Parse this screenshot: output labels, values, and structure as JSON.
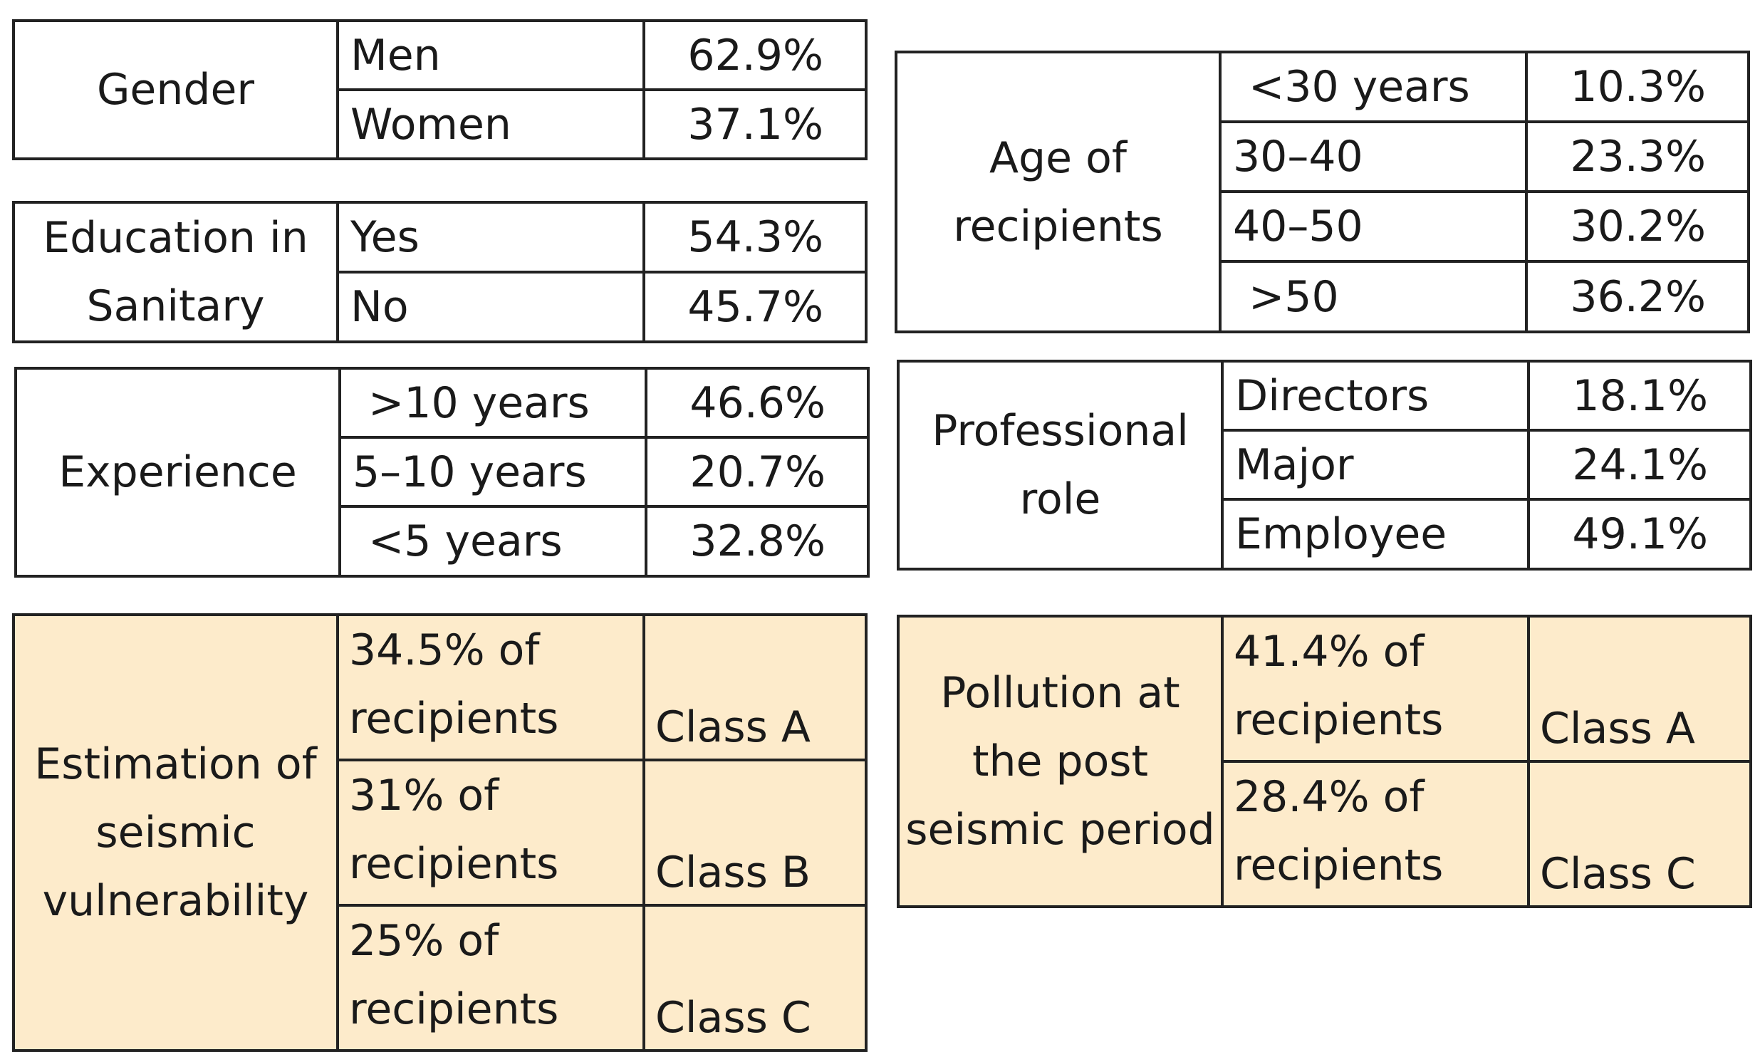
{
  "blocks": {
    "gender": {
      "category": "Gender",
      "rows": [
        {
          "label": "Men",
          "value": "62.9%"
        },
        {
          "label": "Women",
          "value": "37.1%"
        }
      ]
    },
    "education": {
      "category": "Education in Sanitary",
      "rows": [
        {
          "label": "Yes",
          "value": "54.3%"
        },
        {
          "label": "No",
          "value": "45.7%"
        }
      ]
    },
    "experience": {
      "category": "Experience",
      "rows": [
        {
          "label": ">10 years",
          "value": "46.6%"
        },
        {
          "label": "5–10 years",
          "value": "20.7%"
        },
        {
          "label": "<5 years",
          "value": "32.8%"
        }
      ]
    },
    "age": {
      "category": "Age of recipients",
      "rows": [
        {
          "label": "<30 years",
          "value": "10.3%"
        },
        {
          "label": "30–40",
          "value": "23.3%"
        },
        {
          "label": "40–50",
          "value": "30.2%"
        },
        {
          "label": ">50",
          "value": "36.2%"
        }
      ]
    },
    "role": {
      "category": "Professional role",
      "rows": [
        {
          "label": "Directors",
          "value": "18.1%"
        },
        {
          "label": "Major",
          "value": "24.1%"
        },
        {
          "label": "Employee",
          "value": "49.1%"
        }
      ]
    },
    "vulnerability": {
      "category": "Estimation of seismic vulnerability",
      "rows": [
        {
          "share": "34.5% of recipients",
          "class": "Class A"
        },
        {
          "share": "31% of recipients",
          "class": "Class B"
        },
        {
          "share": "25% of recipients",
          "class": "Class C"
        }
      ]
    },
    "pollution": {
      "category": "Pollution at the post seismic period",
      "rows": [
        {
          "share": "41.4% of recipients",
          "class": "Class A"
        },
        {
          "share": "28.4% of recipients",
          "class": "Class C"
        }
      ]
    }
  },
  "colors": {
    "highlight_fill": "#fdebcb",
    "border": "#222222",
    "text": "#1a1a1a"
  }
}
